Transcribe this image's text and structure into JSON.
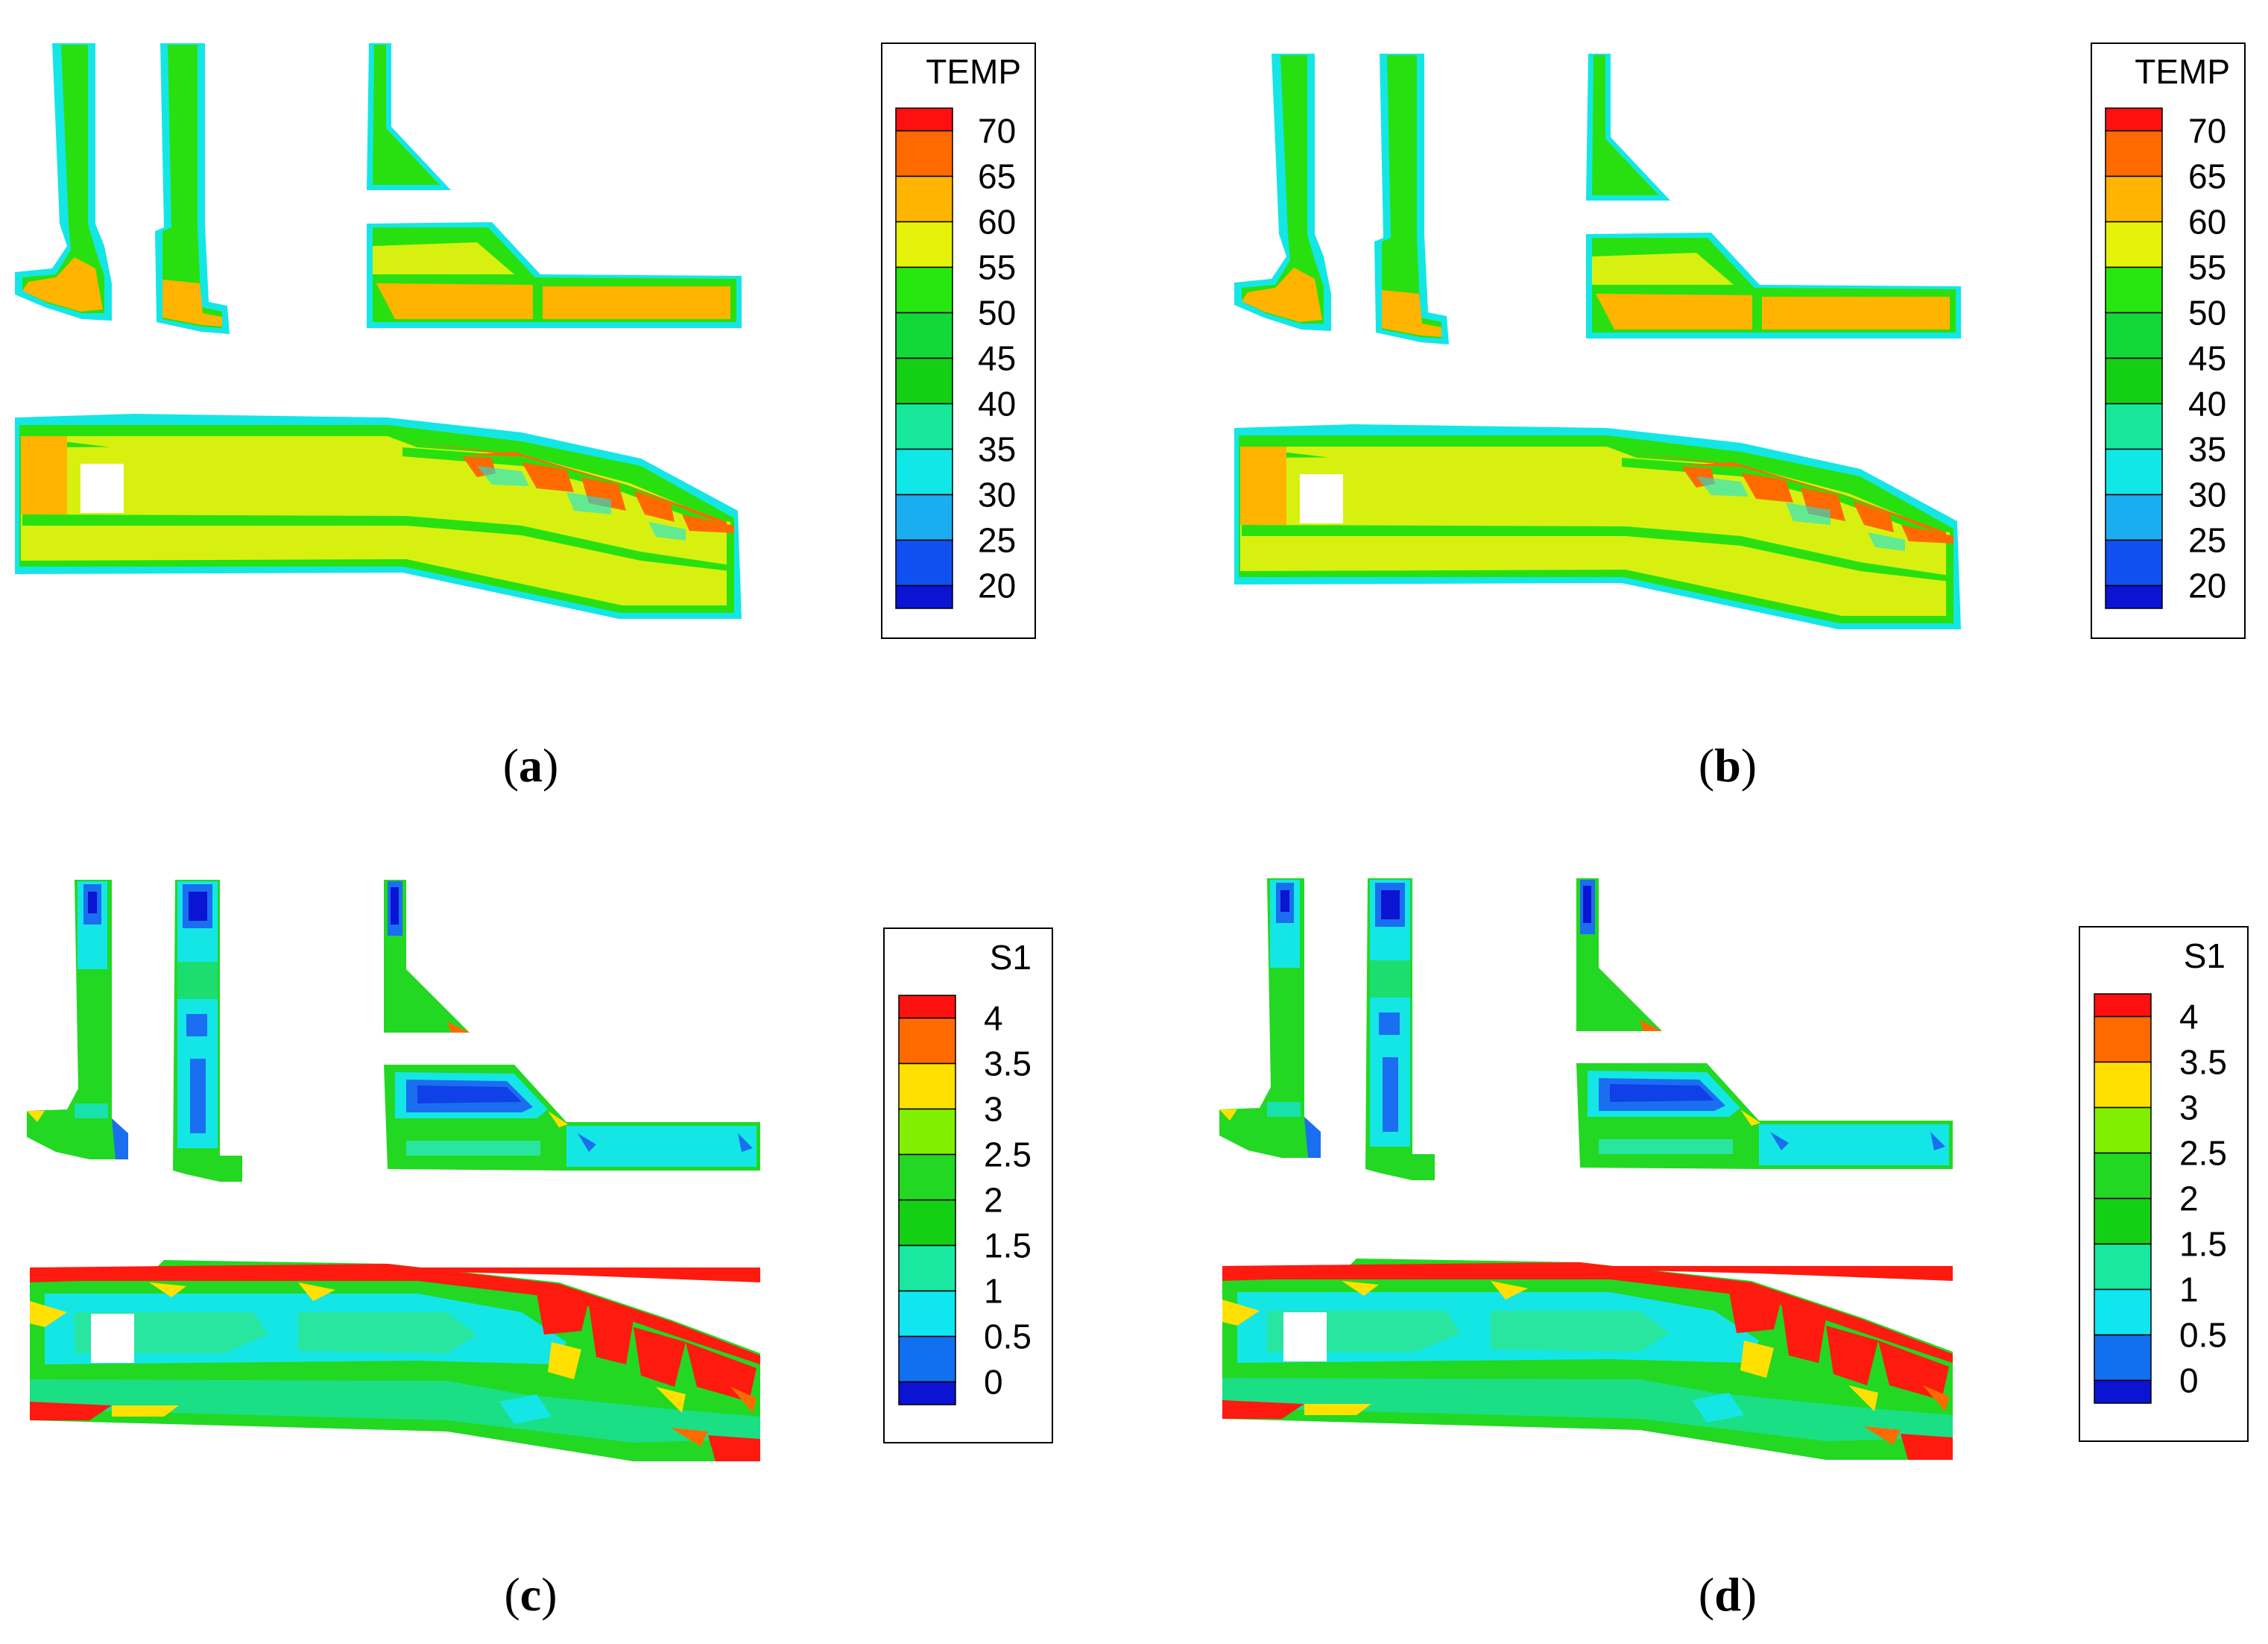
{
  "panels": [
    {
      "id": "a",
      "caption": "a",
      "legend": {
        "title": "TEMP",
        "labels": [
          "70",
          "65",
          "60",
          "55",
          "50",
          "45",
          "40",
          "35",
          "30",
          "25",
          "20"
        ],
        "colors": [
          "#ff1010",
          "#ff6a00",
          "#ffb400",
          "#e6f20a",
          "#28e610",
          "#12d838",
          "#14d014",
          "#18e89a",
          "#10e8e8",
          "#1aaef0",
          "#1050f0",
          "#0a14d2"
        ]
      }
    },
    {
      "id": "b",
      "caption": "b",
      "legend": {
        "title": "TEMP",
        "labels": [
          "70",
          "65",
          "60",
          "55",
          "50",
          "45",
          "40",
          "35",
          "30",
          "25",
          "20"
        ],
        "colors": [
          "#ff1010",
          "#ff6a00",
          "#ffb400",
          "#e6f20a",
          "#28e610",
          "#12d838",
          "#14d014",
          "#18e89a",
          "#10e8e8",
          "#1aaef0",
          "#1050f0",
          "#0a14d2"
        ]
      }
    },
    {
      "id": "c",
      "caption": "c",
      "legend": {
        "title": "S1",
        "labels": [
          "4",
          "3.5",
          "3",
          "2.5",
          "2",
          "1.5",
          "1",
          "0.5",
          "0"
        ],
        "colors": [
          "#ff1010",
          "#ff6a00",
          "#ffe000",
          "#80f000",
          "#22d822",
          "#14d014",
          "#18e8a0",
          "#10e6f0",
          "#1070f0",
          "#0a14d2"
        ]
      }
    },
    {
      "id": "d",
      "caption": "d",
      "legend": {
        "title": "S1",
        "labels": [
          "4",
          "3.5",
          "3",
          "2.5",
          "2",
          "1.5",
          "1",
          "0.5",
          "0"
        ],
        "colors": [
          "#ff1010",
          "#ff6a00",
          "#ffe000",
          "#80f000",
          "#22d822",
          "#14d014",
          "#18e8a0",
          "#10e6f0",
          "#1070f0",
          "#0a14d2"
        ]
      }
    }
  ],
  "colors": {
    "edge": "#14e6e6",
    "green": "#28e010",
    "yellow_green": "#d8f010",
    "orange": "#ffb400",
    "red": "#ff1a10",
    "cyan": "#18e0e0",
    "blue": "#1a6ef0",
    "aqua": "#22e6a8"
  }
}
